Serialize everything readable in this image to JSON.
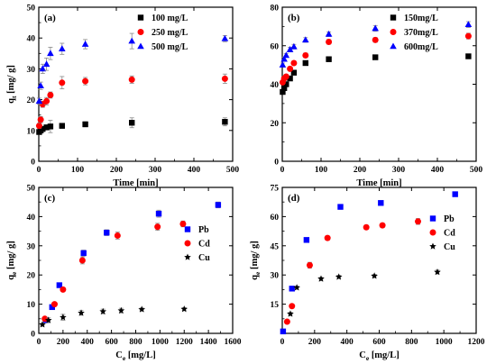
{
  "chart_data": [
    {
      "id": "a",
      "panel_label": "(a)",
      "type": "scatter",
      "xlabel": "Time [min]",
      "ylabel_main": "q",
      "ylabel_sub": "t",
      "ylabel_rest": " [mg/ g]",
      "xlim": [
        0,
        500
      ],
      "ylim": [
        0,
        50
      ],
      "xticks": [
        0,
        100,
        200,
        300,
        400,
        500
      ],
      "yticks": [
        0,
        10,
        20,
        30,
        40,
        50
      ],
      "legend_position": "top-right",
      "series": [
        {
          "name": "100 mg/L",
          "color": "#000000",
          "marker": "square",
          "x": [
            1,
            5,
            10,
            20,
            30,
            60,
            120,
            240,
            480
          ],
          "y": [
            9.5,
            10,
            10.5,
            11,
            11.3,
            11.5,
            12,
            12.5,
            12.8
          ],
          "err": [
            0.8,
            0.8,
            0.8,
            0.8,
            2.0,
            0.8,
            0.8,
            1.6,
            1.3
          ]
        },
        {
          "name": "250 mg/L",
          "color": "#ff0000",
          "marker": "circle",
          "x": [
            1,
            5,
            10,
            20,
            30,
            60,
            120,
            240,
            480
          ],
          "y": [
            11.5,
            13.5,
            18.5,
            19.5,
            21.5,
            25.5,
            26,
            26.5,
            26.8
          ],
          "err": [
            0.8,
            1.0,
            1.0,
            1.2,
            1.0,
            2.0,
            1.2,
            1.2,
            1.5
          ]
        },
        {
          "name": "500 mg/L",
          "color": "#0000ff",
          "marker": "triangle",
          "x": [
            1,
            5,
            10,
            20,
            30,
            60,
            120,
            240,
            480
          ],
          "y": [
            19.5,
            24.5,
            30,
            31.5,
            35,
            36.5,
            38,
            39,
            39.8
          ],
          "err": [
            1.0,
            1.2,
            1.5,
            2.0,
            2.0,
            1.8,
            1.5,
            2.5,
            1.0
          ]
        }
      ]
    },
    {
      "id": "b",
      "panel_label": "(b)",
      "type": "scatter",
      "xlabel": "Time [min]",
      "ylabel_main": "",
      "ylabel_sub": "",
      "ylabel_rest": "",
      "xlim": [
        0,
        500
      ],
      "ylim": [
        0,
        80
      ],
      "xticks": [
        0,
        100,
        200,
        300,
        400,
        500
      ],
      "yticks": [
        0,
        20,
        40,
        60,
        80
      ],
      "legend_position": "top-right",
      "series": [
        {
          "name": "150mg/L",
          "color": "#000000",
          "marker": "square",
          "x": [
            1,
            5,
            10,
            20,
            30,
            60,
            120,
            240,
            480
          ],
          "y": [
            36,
            38,
            40,
            43,
            46,
            51,
            53,
            54,
            54.5
          ],
          "err": [
            0.8,
            0.8,
            0.8,
            1.0,
            1.0,
            1.0,
            1.2,
            1.0,
            1.2
          ]
        },
        {
          "name": "370mg/L",
          "color": "#ff0000",
          "marker": "circle",
          "x": [
            1,
            5,
            10,
            20,
            30,
            60,
            120,
            240,
            480
          ],
          "y": [
            41,
            43,
            44,
            48,
            51,
            55,
            62,
            63,
            65
          ],
          "err": [
            1.0,
            1.0,
            1.0,
            1.0,
            1.0,
            1.2,
            1.2,
            1.2,
            1.5
          ]
        },
        {
          "name": "600mg/L",
          "color": "#0000ff",
          "marker": "triangle",
          "x": [
            1,
            5,
            10,
            20,
            30,
            60,
            120,
            240,
            480
          ],
          "y": [
            50,
            53,
            55,
            58,
            59.5,
            63,
            66,
            69,
            71
          ],
          "err": [
            1.0,
            1.0,
            1.0,
            1.2,
            1.2,
            1.2,
            1.2,
            1.5,
            1.5
          ]
        }
      ]
    },
    {
      "id": "c",
      "panel_label": "(c)",
      "type": "scatter",
      "xlabel_main": "C",
      "xlabel_sub": "e",
      "xlabel_rest": " [mg/L]",
      "ylabel_main": "q",
      "ylabel_sub": "e",
      "ylabel_rest": " [mg/ g]",
      "xlim": [
        0,
        1600
      ],
      "ylim": [
        0,
        50
      ],
      "xticks": [
        0,
        200,
        400,
        600,
        800,
        1000,
        1200,
        1400,
        1600
      ],
      "yticks": [
        0,
        10,
        20,
        30,
        40,
        50
      ],
      "legend_position": "right",
      "series": [
        {
          "name": "Pb",
          "color": "#0000ff",
          "marker": "square",
          "x": [
            60,
            110,
            170,
            370,
            560,
            990,
            1480
          ],
          "y": [
            4.5,
            9,
            16.5,
            27.5,
            34.5,
            41,
            44
          ],
          "err": [
            0.5,
            0.6,
            0.6,
            1.0,
            1.0,
            1.2,
            1.0
          ]
        },
        {
          "name": "Cd",
          "color": "#ff0000",
          "marker": "circle",
          "x": [
            50,
            130,
            200,
            360,
            650,
            980,
            1190
          ],
          "y": [
            5,
            10,
            15,
            25,
            33.5,
            36.5,
            37.5
          ],
          "err": [
            0.5,
            0.6,
            0.6,
            1.2,
            1.2,
            1.2,
            1.0
          ]
        },
        {
          "name": "Cu",
          "color": "#000000",
          "marker": "star",
          "x": [
            30,
            80,
            200,
            350,
            530,
            680,
            850,
            1200
          ],
          "y": [
            3,
            4.5,
            5.5,
            7,
            7.5,
            7.8,
            8.2,
            8.3
          ],
          "err": [
            0.5,
            0.8,
            1.0,
            0.8,
            0.8,
            0.8,
            0.5,
            0.5
          ]
        }
      ]
    },
    {
      "id": "d",
      "panel_label": "(d)",
      "type": "scatter",
      "xlabel_main": "C",
      "xlabel_sub": "e",
      "xlabel_rest": " [mg/L]",
      "ylabel_main": "q",
      "ylabel_sub": "e",
      "ylabel_rest": " [mg/ g]",
      "xlim": [
        0,
        1200
      ],
      "ylim": [
        0,
        75
      ],
      "xticks": [
        0,
        200,
        400,
        600,
        800,
        1000,
        1200
      ],
      "yticks": [
        15,
        30,
        45,
        60,
        75
      ],
      "legend_position": "right",
      "series": [
        {
          "name": "Pb",
          "color": "#0000ff",
          "marker": "square",
          "x": [
            5,
            60,
            150,
            360,
            610,
            1070
          ],
          "y": [
            1,
            23,
            48,
            65,
            67,
            71.5
          ],
          "err": [
            0.5,
            0.8,
            1.0,
            1.2,
            0.8,
            0.8
          ]
        },
        {
          "name": "Cd",
          "color": "#ff0000",
          "marker": "circle",
          "x": [
            30,
            60,
            170,
            280,
            520,
            620,
            840
          ],
          "y": [
            6,
            14,
            35,
            49,
            54.5,
            55.5,
            57.5
          ],
          "err": [
            0.5,
            0.8,
            1.5,
            1.0,
            1.0,
            1.0,
            1.5
          ]
        },
        {
          "name": "Cu",
          "color": "#000000",
          "marker": "star",
          "x": [
            50,
            90,
            240,
            350,
            570,
            960
          ],
          "y": [
            10,
            23.5,
            28,
            29,
            29.5,
            31.5
          ],
          "err": [
            0.8,
            0.8,
            0.8,
            0.8,
            0.8,
            1.0
          ]
        }
      ]
    }
  ]
}
